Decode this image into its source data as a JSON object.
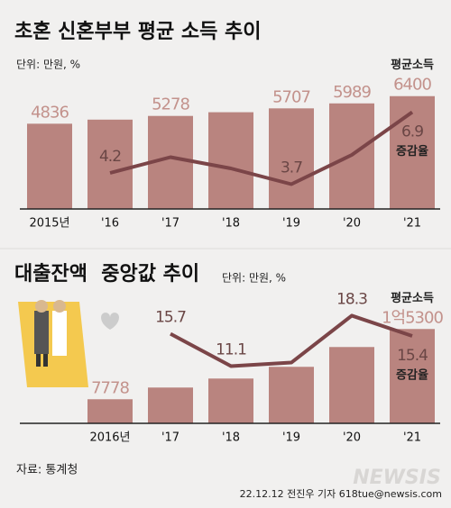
{
  "chart_data": [
    {
      "type": "bar-line",
      "title": "초혼 신혼부부 평균 소득 추이",
      "unit": "단위: 만원, %",
      "categories": [
        "2015년",
        "'16",
        "'17",
        "'18",
        "'19",
        "'20",
        "'21"
      ],
      "series": [
        {
          "name": "평균소득",
          "color": "#b9847f",
          "values": [
            4836,
            5068,
            5278,
            5488,
            5707,
            5989,
            6400
          ],
          "value_labels": [
            "4836",
            null,
            "5278",
            null,
            "5707",
            "5989",
            "6400"
          ]
        },
        {
          "name": "증감율",
          "color": "#7b4548",
          "axis": "y2",
          "values": [
            null,
            4.2,
            4.9,
            4.4,
            3.7,
            5.0,
            6.9
          ],
          "value_labels": [
            null,
            "4.2",
            null,
            null,
            "3.7",
            null,
            "6.9"
          ]
        }
      ],
      "ylim": [
        0,
        7000
      ],
      "y2lim": [
        3,
        7.2
      ]
    },
    {
      "type": "bar-line",
      "title": "대출잔액  중앙값 추이",
      "unit": "단위: 만원, %",
      "categories": [
        "2016년",
        "'17",
        "'18",
        "'19",
        "'20",
        "'21"
      ],
      "series": [
        {
          "name": "평균소득",
          "color": "#b9847f",
          "values": [
            7778,
            9032,
            9996,
            11250,
            13370,
            15300
          ],
          "value_labels": [
            "7778",
            null,
            null,
            null,
            null,
            "1억5300"
          ]
        },
        {
          "name": "증감율",
          "color": "#7b4548",
          "axis": "y2",
          "values": [
            null,
            15.7,
            11.1,
            11.6,
            18.3,
            15.4
          ],
          "value_labels": [
            null,
            "15.7",
            "11.1",
            null,
            "18.3",
            "15.4"
          ]
        }
      ],
      "ylim": [
        5200,
        16000
      ],
      "y2lim": [
        10,
        19
      ]
    }
  ],
  "source": "자료: 통계청",
  "credit": "22.12.12 전진우 기자 618tue@newsis.com",
  "watermark": "NEWSIS"
}
